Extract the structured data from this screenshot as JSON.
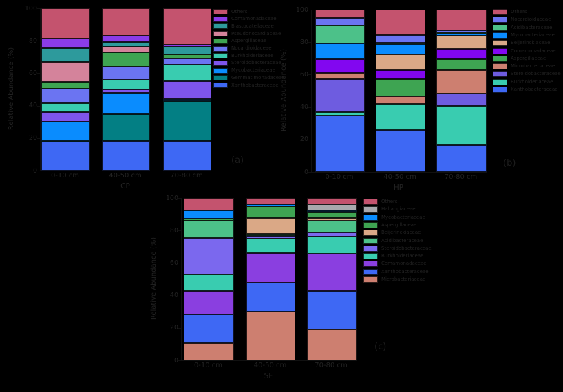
{
  "figure": {
    "ylabel": "Relative Abundance (%)",
    "x_tick_labels": [
      "0-10 cm",
      "40-50 cm",
      "70-80 cm"
    ],
    "background_color": "#000000",
    "text_color": "#222222"
  },
  "chart_data": [
    {
      "type": "bar",
      "stacked": true,
      "panel_label": "(a)",
      "xlabel": "CP",
      "ylabel": "Relative Abundance (%)",
      "ylim": [
        0,
        100
      ],
      "yticks": [
        0,
        20,
        40,
        60,
        80,
        100
      ],
      "legend_position": "right",
      "grid": false,
      "categories": [
        "0-10 cm",
        "40-50 cm",
        "70-80 cm"
      ],
      "series": [
        {
          "name": "Others",
          "color": "#c4536e",
          "values": [
            18.6,
            16.9,
            22.5
          ]
        },
        {
          "name": "Comamonadaceae",
          "color": "#8b3ce8",
          "values": [
            6.0,
            3.8,
            1.1
          ]
        },
        {
          "name": "Blastocatellaceae",
          "color": "#2d9a9c",
          "values": [
            8.5,
            3.2,
            4.6
          ]
        },
        {
          "name": "Pseudonocardiaceae",
          "color": "#d4839b",
          "values": [
            12.3,
            3.1,
            0
          ]
        },
        {
          "name": "Aspergillaceae",
          "color": "#3ea452",
          "values": [
            4.2,
            9.2,
            2.7
          ]
        },
        {
          "name": "Nocardioidaceae",
          "color": "#6b74f2",
          "values": [
            8.9,
            7.7,
            4.0
          ]
        },
        {
          "name": "Burkholderiaceae",
          "color": "#39ccb0",
          "values": [
            5.6,
            6.1,
            10.0
          ]
        },
        {
          "name": "Steroidobacteraceae",
          "color": "#7e55ec",
          "values": [
            5.6,
            2.1,
            11.1
          ]
        },
        {
          "name": "Mycobacteriaceae",
          "color": "#0a8cfe",
          "values": [
            12.0,
            13.0,
            1.4
          ]
        },
        {
          "name": "Gemmatimonadaceae",
          "color": "#037f84",
          "values": [
            0.3,
            16.6,
            24.5
          ]
        },
        {
          "name": "Xanthobacteraceae",
          "color": "#3e68f4",
          "values": [
            18.0,
            18.3,
            18.1
          ]
        }
      ]
    },
    {
      "type": "bar",
      "stacked": true,
      "panel_label": "(b)",
      "xlabel": "HP",
      "ylabel": "Relative Abundance (%)",
      "ylim": [
        0,
        100
      ],
      "yticks": [
        0,
        20,
        40,
        60,
        80,
        100
      ],
      "legend_position": "right",
      "grid": false,
      "categories": [
        "0-10 cm",
        "40-50 cm",
        "70-80 cm"
      ],
      "series": [
        {
          "name": "Others",
          "color": "#c4536e",
          "values": [
            5.1,
            15.5,
            12.7
          ]
        },
        {
          "name": "Nocardioidaceae",
          "color": "#6b74f2",
          "values": [
            4.8,
            4.8,
            1.3
          ]
        },
        {
          "name": "Acidibacteraceae",
          "color": "#4cc189",
          "values": [
            10.7,
            0.9,
            1.0
          ]
        },
        {
          "name": "Mycobacteriaceae",
          "color": "#0a8cfe",
          "values": [
            9.9,
            6.4,
            1.0
          ]
        },
        {
          "name": "Beijerinckiaceae",
          "color": "#daa886",
          "values": [
            0,
            9.5,
            8.0
          ]
        },
        {
          "name": "Comamonadaceae",
          "color": "#8207f0",
          "values": [
            8.5,
            5.7,
            6.5
          ]
        },
        {
          "name": "Aspergillaceae",
          "color": "#3ea452",
          "values": [
            0,
            10.6,
            6.9
          ]
        },
        {
          "name": "Microbacteriaceae",
          "color": "#cd7f70",
          "values": [
            3.8,
            4.5,
            14.3
          ]
        },
        {
          "name": "Steroidobacteraceae",
          "color": "#6e5ce0",
          "values": [
            20.2,
            0,
            7.8
          ]
        },
        {
          "name": "Burkholderiaceae",
          "color": "#39ccb0",
          "values": [
            2.4,
            16.4,
            23.8
          ]
        },
        {
          "name": "Xanthobacteraceae",
          "color": "#3e68f4",
          "values": [
            34.6,
            25.7,
            16.7
          ]
        }
      ]
    },
    {
      "type": "bar",
      "stacked": true,
      "panel_label": "(c)",
      "xlabel": "SF",
      "ylabel": "Relative Abundance (%)",
      "ylim": [
        0,
        100
      ],
      "yticks": [
        0,
        20,
        40,
        60,
        80,
        100
      ],
      "legend_position": "right",
      "grid": false,
      "categories": [
        "0-10 cm",
        "40-50 cm",
        "70-80 cm"
      ],
      "series": [
        {
          "name": "Others",
          "color": "#c4536e",
          "values": [
            7.6,
            4.0,
            3.7
          ]
        },
        {
          "name": "Haliangiaceae",
          "color": "#a9a9ad",
          "values": [
            0,
            0,
            3.9
          ]
        },
        {
          "name": "Mycobacteriaceae",
          "color": "#0a8cfe",
          "values": [
            5.2,
            1.1,
            0.7
          ]
        },
        {
          "name": "Aspergillaceae",
          "color": "#3ea452",
          "values": [
            1.1,
            7.0,
            3.8
          ]
        },
        {
          "name": "Beijerinckiaceae",
          "color": "#daa886",
          "values": [
            0,
            9.9,
            1.7
          ]
        },
        {
          "name": "Acidibacteraceae",
          "color": "#4cc189",
          "values": [
            10.6,
            1.1,
            7.5
          ]
        },
        {
          "name": "Steroidobacteraceae",
          "color": "#7b68ee",
          "values": [
            22.5,
            1.7,
            2.5
          ]
        },
        {
          "name": "Burkholderiaceae",
          "color": "#39ccb0",
          "values": [
            10.3,
            9.2,
            10.6
          ]
        },
        {
          "name": "Comamonadaceae",
          "color": "#8a3fe0",
          "values": [
            14.5,
            18.3,
            22.6
          ]
        },
        {
          "name": "Xanthobacteraceae",
          "color": "#3e68f4",
          "values": [
            17.6,
            17.6,
            24.0
          ]
        },
        {
          "name": "Microbacteriaceae",
          "color": "#cd7f70",
          "values": [
            10.6,
            30.1,
            19.0
          ]
        }
      ]
    }
  ]
}
